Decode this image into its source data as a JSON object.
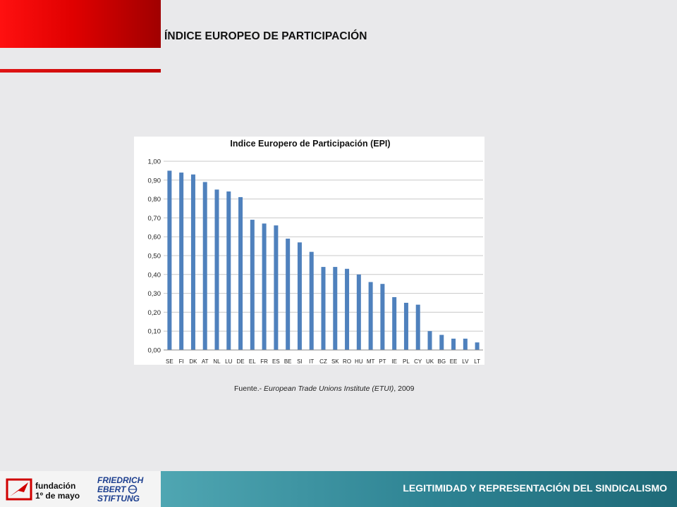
{
  "header": {
    "title": "ÍNDICE EUROPEO DE PARTICIPACIÓN"
  },
  "source": {
    "prefix": "Fuente.- ",
    "italic": "European Trade Unions Institute (ETUI)",
    "suffix": ", 2009"
  },
  "footer": {
    "text": "LEGITIMIDAD Y REPRESENTACIÓN DEL SINDICALISMO",
    "logo_left": {
      "line1": "fundación",
      "line2": "1º de mayo"
    },
    "logo_right": {
      "line1": "FRIEDRICH",
      "line2": "EBERT",
      "line3": "STIFTUNG"
    }
  },
  "colors": {
    "accent_red": "#e00000",
    "bar": "#4f81bd",
    "footer_teal": "#2d8292"
  },
  "chart_data": {
    "type": "bar",
    "title": "Indice Europero de Participación (EPI)",
    "categories": [
      "SE",
      "FI",
      "DK",
      "AT",
      "NL",
      "LU",
      "DE",
      "EL",
      "FR",
      "ES",
      "BE",
      "SI",
      "IT",
      "CZ",
      "SK",
      "RO",
      "HU",
      "MT",
      "PT",
      "IE",
      "PL",
      "CY",
      "UK",
      "BG",
      "EE",
      "LV",
      "LT"
    ],
    "values": [
      0.95,
      0.94,
      0.93,
      0.89,
      0.85,
      0.84,
      0.81,
      0.69,
      0.67,
      0.66,
      0.59,
      0.57,
      0.52,
      0.44,
      0.44,
      0.43,
      0.4,
      0.36,
      0.35,
      0.28,
      0.25,
      0.24,
      0.1,
      0.08,
      0.06,
      0.06,
      0.04
    ],
    "yticks": [
      "0,00",
      "0,10",
      "0,20",
      "0,30",
      "0,40",
      "0,50",
      "0,60",
      "0,70",
      "0,80",
      "0,90",
      "1,00"
    ],
    "ylim": [
      0,
      1
    ],
    "grid": true,
    "legend": "none"
  }
}
